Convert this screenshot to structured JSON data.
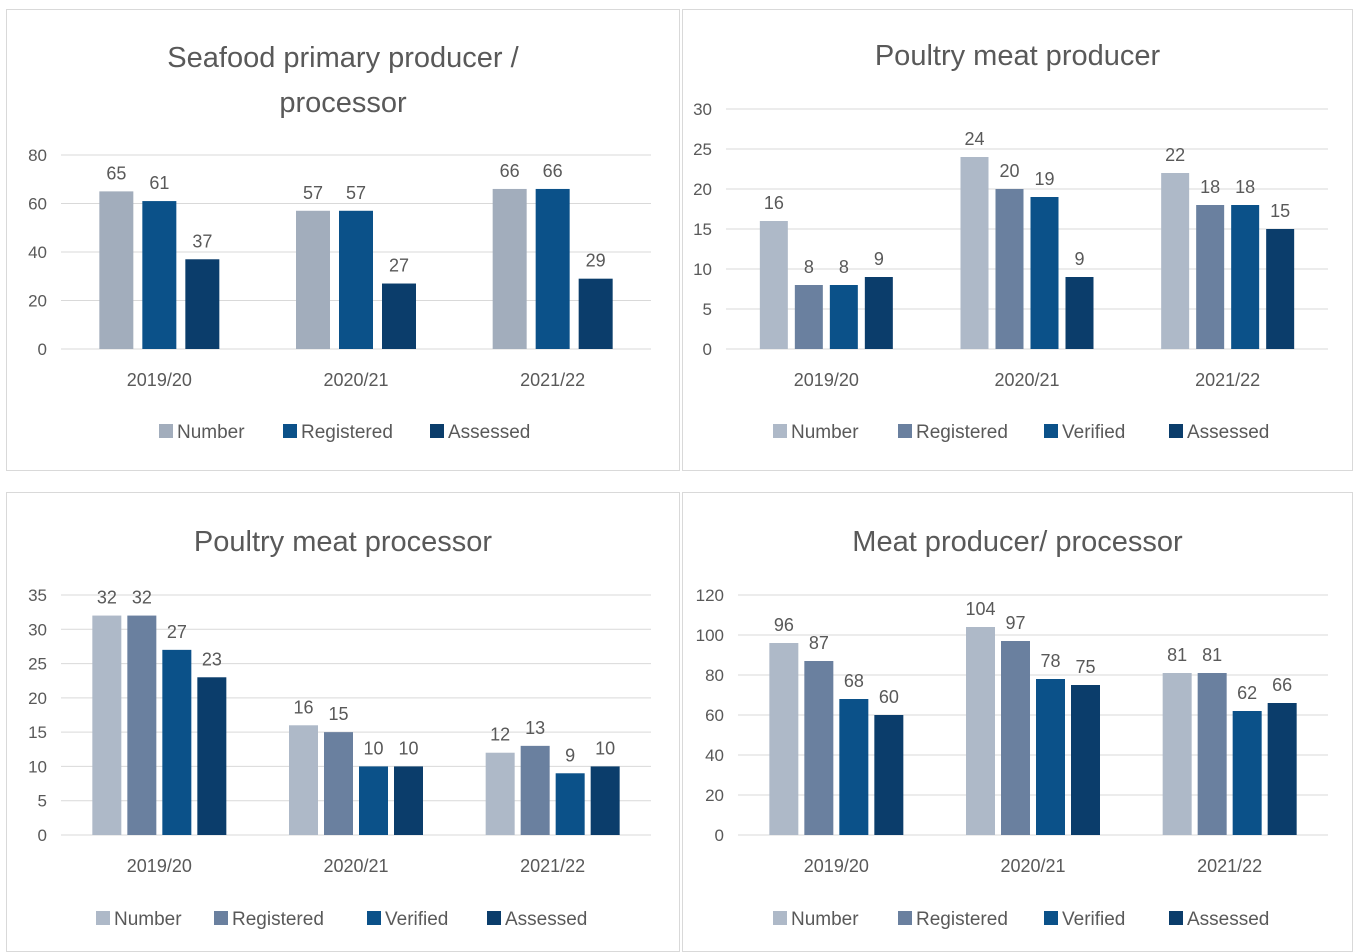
{
  "colors": {
    "Number_seafood": "#A2ADBC",
    "Number": "#AEB9C8",
    "Registered_seafood": "#0B5189",
    "Registered": "#6A809F",
    "Verified": "#0B5189",
    "Assessed": "#0B3D6B",
    "gridline": "#d9d9d9",
    "text": "#595959",
    "title": "#595959"
  },
  "chart_data": [
    {
      "type": "bar",
      "title": "Seafood primary producer / processor",
      "title_lines": [
        "Seafood primary producer /",
        "processor"
      ],
      "categories": [
        "2019/20",
        "2020/21",
        "2021/22"
      ],
      "series": [
        {
          "name": "Number",
          "color_key": "Number_seafood",
          "values": [
            65,
            57,
            66
          ]
        },
        {
          "name": "Registered",
          "color_key": "Registered_seafood",
          "values": [
            61,
            57,
            66
          ]
        },
        {
          "name": "Assessed",
          "color_key": "Assessed",
          "values": [
            37,
            27,
            29
          ]
        }
      ],
      "ylim": [
        0,
        80
      ],
      "yticks": [
        0,
        20,
        40,
        60,
        80
      ],
      "grid": true,
      "legend": "bottom"
    },
    {
      "type": "bar",
      "title": "Poultry meat producer",
      "title_lines": [
        "Poultry meat producer"
      ],
      "categories": [
        "2019/20",
        "2020/21",
        "2021/22"
      ],
      "series": [
        {
          "name": "Number",
          "color_key": "Number",
          "values": [
            16,
            24,
            22
          ]
        },
        {
          "name": "Registered",
          "color_key": "Registered",
          "values": [
            8,
            20,
            18
          ]
        },
        {
          "name": "Verified",
          "color_key": "Verified",
          "values": [
            8,
            19,
            18
          ]
        },
        {
          "name": "Assessed",
          "color_key": "Assessed",
          "values": [
            9,
            9,
            15
          ]
        }
      ],
      "ylim": [
        0,
        30
      ],
      "yticks": [
        0,
        5,
        10,
        15,
        20,
        25,
        30
      ],
      "grid": true,
      "legend": "bottom"
    },
    {
      "type": "bar",
      "title": "Poultry meat processor",
      "title_lines": [
        "Poultry meat processor"
      ],
      "categories": [
        "2019/20",
        "2020/21",
        "2021/22"
      ],
      "series": [
        {
          "name": "Number",
          "color_key": "Number",
          "values": [
            32,
            16,
            12
          ]
        },
        {
          "name": "Registered",
          "color_key": "Registered",
          "values": [
            32,
            15,
            13
          ]
        },
        {
          "name": "Verified",
          "color_key": "Verified",
          "values": [
            27,
            10,
            9
          ]
        },
        {
          "name": "Assessed",
          "color_key": "Assessed",
          "values": [
            23,
            10,
            10
          ]
        }
      ],
      "ylim": [
        0,
        35
      ],
      "yticks": [
        0,
        5,
        10,
        15,
        20,
        25,
        30,
        35
      ],
      "grid": true,
      "legend": "bottom"
    },
    {
      "type": "bar",
      "title": "Meat producer/ processor",
      "title_lines": [
        "Meat producer/ processor"
      ],
      "categories": [
        "2019/20",
        "2020/21",
        "2021/22"
      ],
      "series": [
        {
          "name": "Number",
          "color_key": "Number",
          "values": [
            96,
            104,
            81
          ]
        },
        {
          "name": "Registered",
          "color_key": "Registered",
          "values": [
            87,
            97,
            81
          ]
        },
        {
          "name": "Verified",
          "color_key": "Verified",
          "values": [
            68,
            78,
            62
          ]
        },
        {
          "name": "Assessed",
          "color_key": "Assessed",
          "values": [
            60,
            75,
            66
          ]
        }
      ],
      "ylim": [
        0,
        120
      ],
      "yticks": [
        0,
        20,
        40,
        60,
        80,
        100,
        120
      ],
      "grid": true,
      "legend": "bottom"
    }
  ]
}
